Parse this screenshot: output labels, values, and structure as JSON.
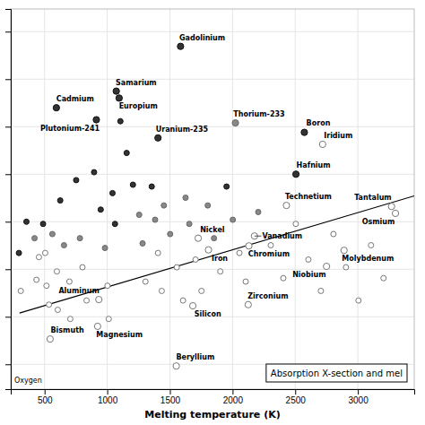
{
  "chart_data": {
    "type": "scatter",
    "xlabel": "Melting temperature (K)",
    "xlim": [
      230,
      3450
    ],
    "xticks": [
      500,
      1000,
      1500,
      2000,
      2500,
      3000
    ],
    "ylim": [
      0.003,
      300000
    ],
    "yticks": [
      0.01,
      0.1,
      1,
      10,
      100,
      1000,
      10000,
      100000
    ],
    "log": "y",
    "grid": true,
    "tick_labels": "x",
    "annotations": [
      "Absorption X-section and mel",
      "Oxygen"
    ],
    "series": [
      {
        "type": "line",
        "color": "#000000",
        "x": [
          300,
          3450
        ],
        "values": [
          0.12,
          35
        ]
      },
      {
        "type": "scatter",
        "x": [
          295,
          310,
          355,
          420,
          435,
          455,
          488,
          505,
          515,
          535,
          562,
          598,
          605,
          625,
          655,
          698,
          705,
          752,
          782,
          802,
          835,
          895,
          948,
          982,
          1002,
          1012,
          1042,
          1062,
          1105,
          1155,
          1205,
          1255,
          1282,
          1305,
          1355,
          1382,
          1405,
          1435,
          1452,
          1502,
          1555,
          1605,
          1625,
          1655,
          1705,
          1752,
          1802,
          1852,
          1902,
          1952,
          2002,
          2055,
          2105,
          2205,
          2305,
          2405,
          2505,
          2605,
          2705,
          2805,
          2905,
          3005,
          3105,
          3205,
          1405,
          1072,
          1095,
          1585,
          913,
          594,
          2023,
          2573,
          2506,
          2719,
          3269,
          2430,
          2175,
          2130,
          2890,
          2750,
          1726,
          1808,
          2125,
          1683,
          1551,
          933,
          923,
          544,
          3300
        ],
        "values": [
          2.2,
          0.35,
          10,
          4.5,
          0.6,
          1.8,
          9,
          2.2,
          0.45,
          0.18,
          5.5,
          0.9,
          0.14,
          28,
          3.2,
          0.55,
          0.09,
          75,
          4.5,
          1.1,
          0.22,
          110,
          18,
          2.8,
          0.45,
          0.09,
          40,
          9,
          1300,
          280,
          60,
          14,
          3.5,
          0.55,
          55,
          11,
          2.2,
          0.35,
          22,
          5.5,
          1.1,
          0.22,
          32,
          9,
          1.6,
          0.35,
          22,
          4.5,
          0.9,
          55,
          11,
          2.2,
          0.55,
          16,
          3.2,
          0.65,
          9,
          1.6,
          0.35,
          5.5,
          1.1,
          0.22,
          3.2,
          0.65,
          580,
          5600,
          4000,
          49000,
          1400,
          2500,
          1200,
          760,
          100,
          425,
          21,
          22,
          5.0,
          3.1,
          2.5,
          1.15,
          4.5,
          2.56,
          0.18,
          0.17,
          0.0092,
          0.23,
          0.063,
          0.034,
          15
        ],
        "labels": [
          null,
          null,
          null,
          null,
          null,
          null,
          null,
          null,
          null,
          null,
          null,
          null,
          null,
          null,
          null,
          null,
          null,
          null,
          null,
          null,
          null,
          null,
          null,
          null,
          null,
          null,
          null,
          null,
          null,
          null,
          null,
          null,
          null,
          null,
          null,
          null,
          null,
          null,
          null,
          null,
          null,
          null,
          null,
          null,
          null,
          null,
          null,
          null,
          null,
          null,
          null,
          null,
          null,
          null,
          null,
          null,
          null,
          null,
          null,
          null,
          null,
          null,
          null,
          null,
          "Uranium-235",
          "Samarium",
          "Europium",
          "Gadolinium",
          "Plutonium-241",
          "Cadmium",
          "Thorium-233",
          "Boron",
          "Hafnium",
          "Iridium",
          "Tantalum",
          "Technetium",
          "Vanadium",
          "Chromium",
          "Molybdenum",
          "Niobium",
          "Nickel",
          "Iron",
          "Zirconium",
          "Silicon",
          "Beryllium",
          "Aluminum",
          "Magnesium",
          "Bismuth",
          "Osmium"
        ],
        "colors": [
          "#333333",
          "#ffffff",
          "#333333",
          "#888888",
          "#ffffff",
          "#ffffff",
          "#333333",
          "#ffffff",
          "#ffffff",
          "#ffffff",
          "#888888",
          "#ffffff",
          "#ffffff",
          "#333333",
          "#888888",
          "#ffffff",
          "#ffffff",
          "#333333",
          "#888888",
          "#ffffff",
          "#ffffff",
          "#333333",
          "#333333",
          "#888888",
          "#ffffff",
          "#ffffff",
          "#333333",
          "#333333",
          "#333333",
          "#333333",
          "#333333",
          "#888888",
          "#888888",
          "#ffffff",
          "#333333",
          "#888888",
          "#ffffff",
          "#ffffff",
          "#888888",
          "#888888",
          "#ffffff",
          "#ffffff",
          "#888888",
          "#888888",
          "#ffffff",
          "#ffffff",
          "#888888",
          "#888888",
          "#ffffff",
          "#333333",
          "#888888",
          "#ffffff",
          "#ffffff",
          "#888888",
          "#ffffff",
          "#ffffff",
          "#ffffff",
          "#ffffff",
          "#ffffff",
          "#ffffff",
          "#ffffff",
          "#ffffff",
          "#ffffff",
          "#ffffff",
          "#333333",
          "#333333",
          "#333333",
          "#333333",
          "#333333",
          "#333333",
          "#888888",
          "#333333",
          "#333333",
          "#ffffff",
          "#ffffff",
          "#ffffff",
          "#ffffff",
          "#ffffff",
          "#ffffff",
          "#ffffff",
          "#ffffff",
          "#ffffff",
          "#ffffff",
          "#ffffff",
          "#ffffff",
          "#ffffff",
          "#ffffff",
          "#ffffff",
          "#ffffff"
        ]
      }
    ]
  }
}
